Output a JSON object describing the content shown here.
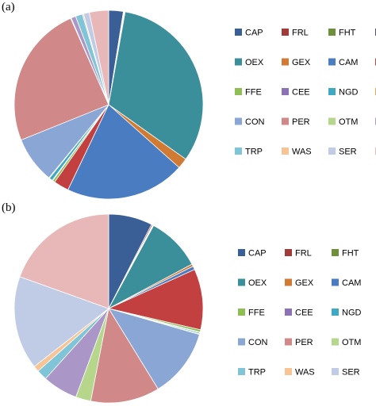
{
  "chart_data": [
    {
      "type": "pie",
      "panel_label": "(a)",
      "legend_placement": "right",
      "categories": [
        "CAP",
        "FRL",
        "FHT",
        "SAA",
        "OEX",
        "GEX",
        "CAM",
        "OMQ",
        "FFE",
        "CEE",
        "NGD",
        "OTU",
        "CON",
        "PER",
        "OTM",
        "TRA",
        "TRP",
        "WAS",
        "SER",
        "PUB"
      ],
      "values": [
        2.5,
        0.1,
        0.1,
        0.1,
        32.0,
        1.8,
        20.5,
        2.6,
        0.4,
        0.1,
        0.6,
        0.1,
        8.0,
        24.5,
        0.1,
        0.8,
        1.2,
        0.2,
        1.0,
        3.3
      ],
      "colors": [
        "#3a5f96",
        "#a33a3a",
        "#6f8f3a",
        "#5b4a86",
        "#3a8f9a",
        "#d07a34",
        "#4a7cc2",
        "#c24040",
        "#8fbf52",
        "#8a72b4",
        "#3fa9c4",
        "#f0a050",
        "#8aa6d4",
        "#d08888",
        "#b6d68c",
        "#ab96c8",
        "#80c4d8",
        "#f7c496",
        "#c0cce6",
        "#e8b8b8"
      ]
    },
    {
      "type": "pie",
      "panel_label": "(b)",
      "legend_placement": "right",
      "categories": [
        "CAP",
        "FRL",
        "FHT",
        "SAA",
        "OEX",
        "GEX",
        "CAM",
        "OMQ",
        "FFE",
        "CEE",
        "NGD",
        "OTU",
        "CON",
        "PER",
        "OTM",
        "TRA",
        "TRP",
        "WAS",
        "SER",
        "PUB"
      ],
      "values": [
        7.5,
        0.2,
        0.1,
        0.1,
        9.3,
        0.4,
        0.6,
        10.4,
        0.4,
        0.1,
        0.2,
        0.1,
        11.8,
        11.8,
        2.6,
        6.0,
        1.8,
        1.0,
        16.0,
        19.5
      ],
      "colors": [
        "#3a5f96",
        "#a33a3a",
        "#6f8f3a",
        "#5b4a86",
        "#3a8f9a",
        "#d07a34",
        "#4a7cc2",
        "#c24040",
        "#8fbf52",
        "#8a72b4",
        "#3fa9c4",
        "#f0a050",
        "#8aa6d4",
        "#d08888",
        "#b6d68c",
        "#ab96c8",
        "#80c4d8",
        "#f7c496",
        "#c0cce6",
        "#e8b8b8"
      ]
    }
  ]
}
